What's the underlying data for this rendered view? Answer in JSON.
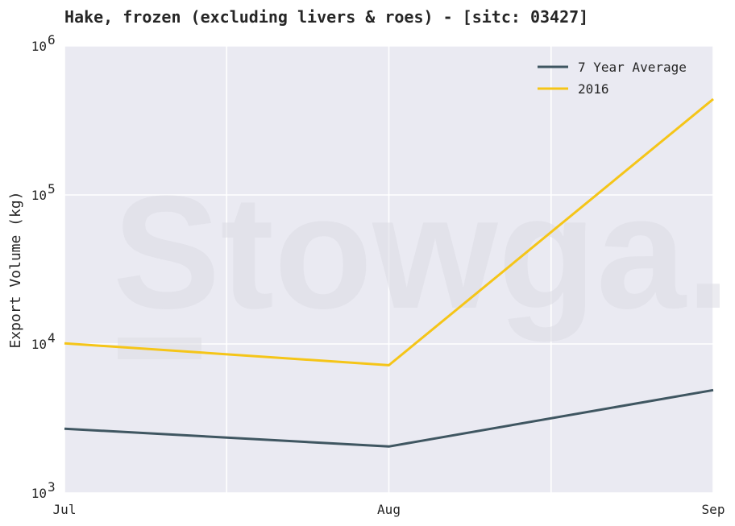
{
  "chart_data": {
    "type": "line",
    "title": "Hake, frozen (excluding livers & roes) - [sitc: 03427]",
    "ylabel": "Export Volume (kg)",
    "xlabel": "",
    "yscale": "log",
    "ylim": [
      1000,
      1000000
    ],
    "x": [
      "Jul",
      "Aug",
      "Sep"
    ],
    "yticks": [
      {
        "base": "10",
        "exp": "3",
        "value": 1000
      },
      {
        "base": "10",
        "exp": "4",
        "value": 10000
      },
      {
        "base": "10",
        "exp": "5",
        "value": 100000
      },
      {
        "base": "10",
        "exp": "6",
        "value": 1000000
      }
    ],
    "series": [
      {
        "name": "7 Year Average",
        "color": "#3f5661",
        "values": [
          2700,
          2050,
          4900
        ]
      },
      {
        "name": "2016",
        "color": "#f5c518",
        "values": [
          10100,
          7200,
          440000
        ]
      }
    ],
    "grid": true,
    "legend": "top-right",
    "background": "#eaeaf2",
    "watermark": "Stowga."
  }
}
